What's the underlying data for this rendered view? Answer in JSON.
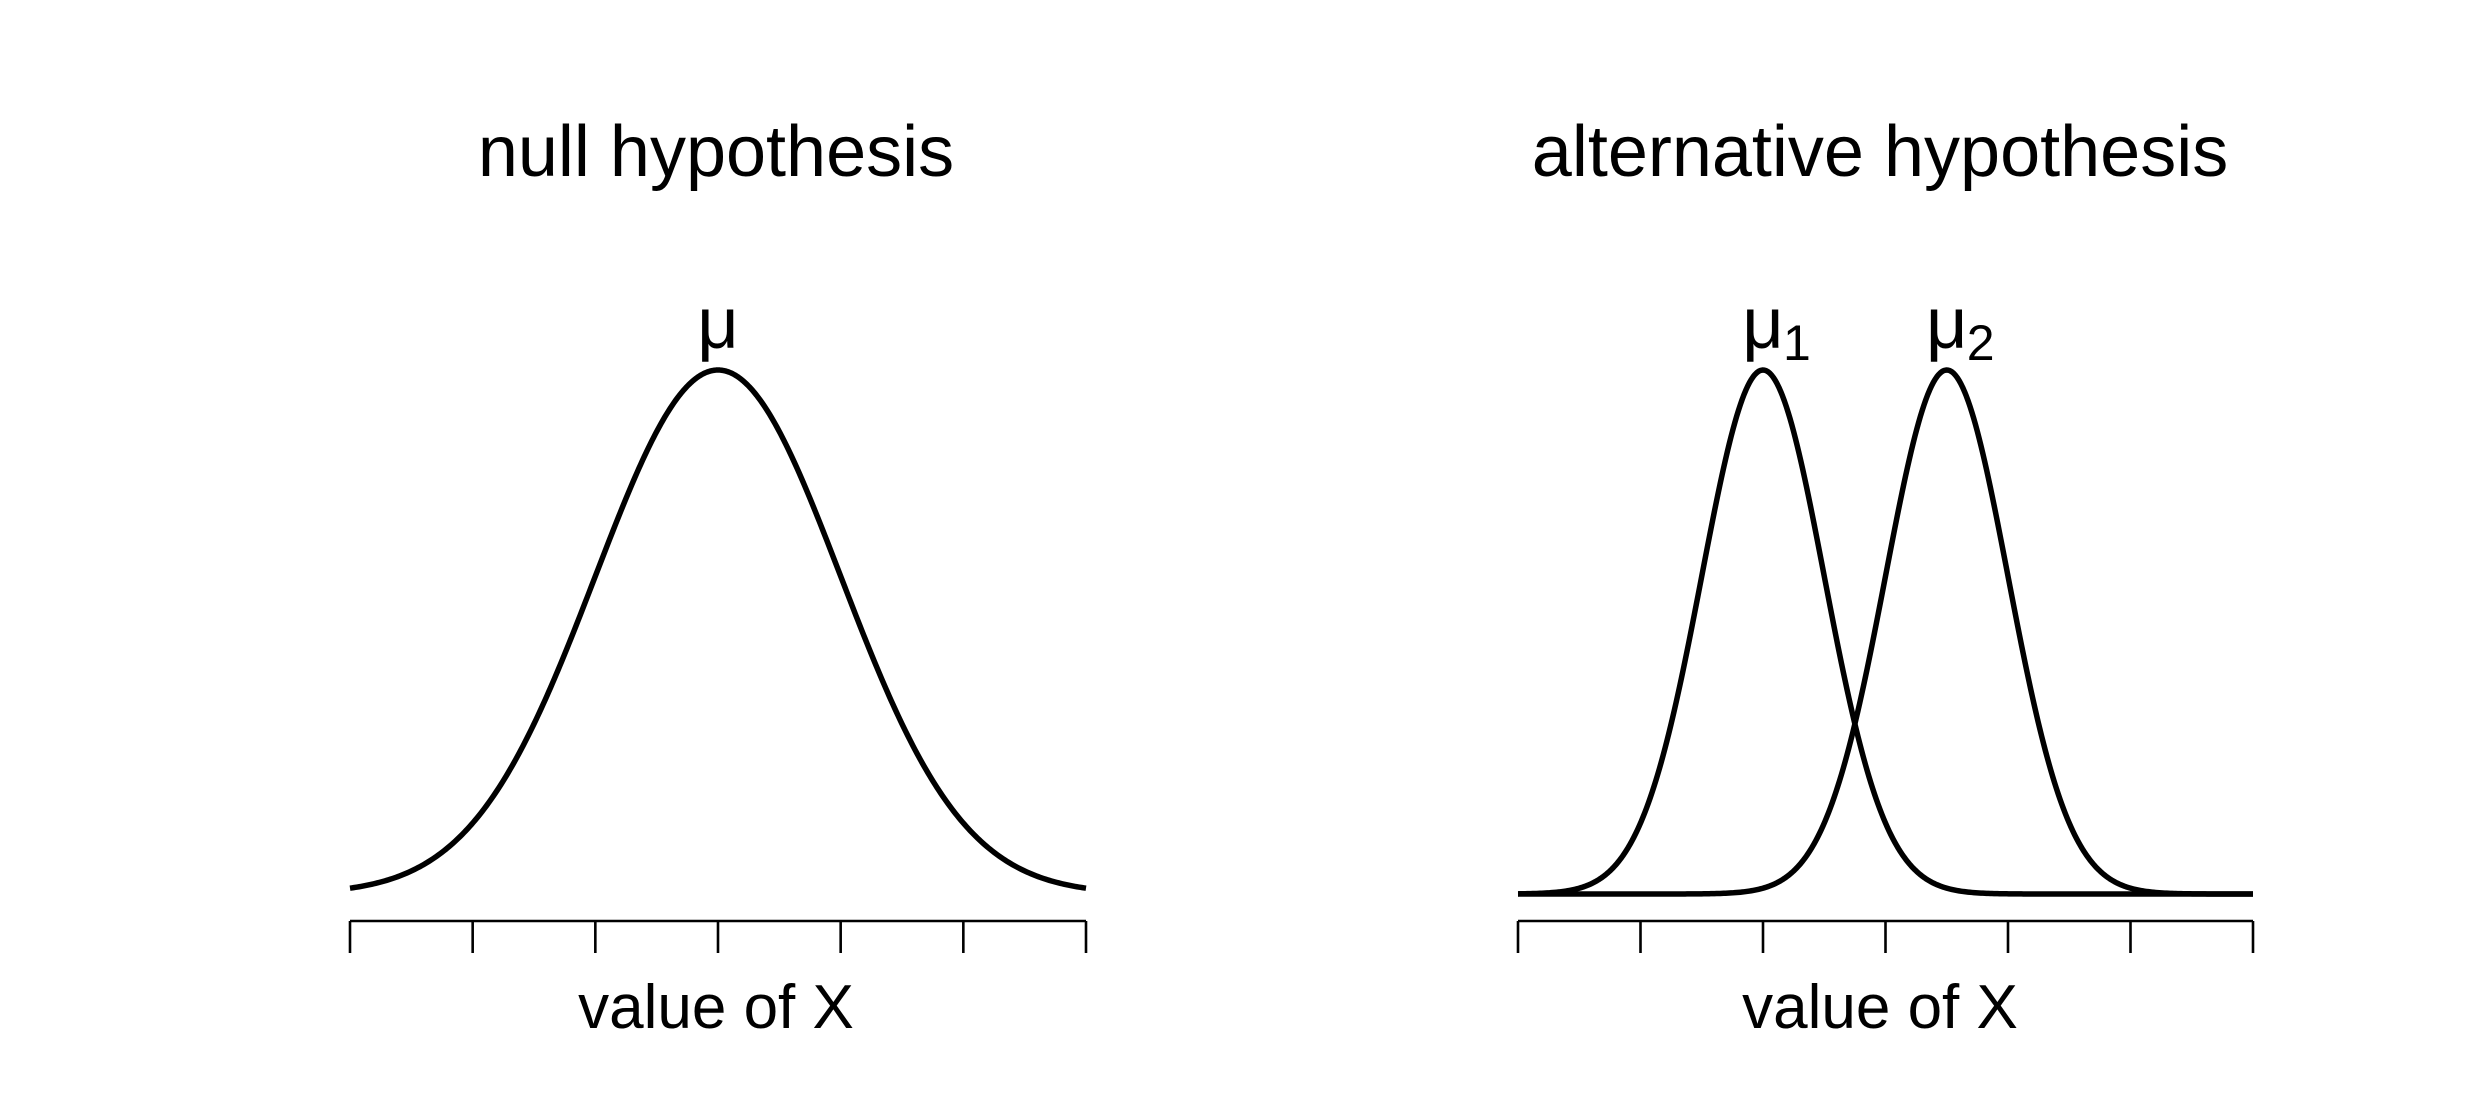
{
  "chart_data": [
    {
      "type": "line",
      "title": "null hypothesis",
      "xlabel": "value of X",
      "ylabel": "",
      "xlim": [
        -3,
        3
      ],
      "ylim": [
        0,
        0.41
      ],
      "ticks": [
        -3,
        -2,
        -1,
        0,
        1,
        2,
        3
      ],
      "series": [
        {
          "mean": 0,
          "sd": 1,
          "label": "μ",
          "label_sub": ""
        }
      ]
    },
    {
      "type": "line",
      "title": "alternative hypothesis",
      "xlabel": "value of X",
      "ylabel": "",
      "xlim": [
        -3,
        3
      ],
      "ylim": [
        0,
        0.41
      ],
      "ticks": [
        -3,
        -2,
        -1,
        0,
        1,
        2,
        3
      ],
      "series": [
        {
          "mean": -1,
          "sd": 0.5,
          "label": "μ",
          "label_sub": "1"
        },
        {
          "mean": 0.5,
          "sd": 0.5,
          "label": "μ",
          "label_sub": "2"
        }
      ]
    }
  ]
}
